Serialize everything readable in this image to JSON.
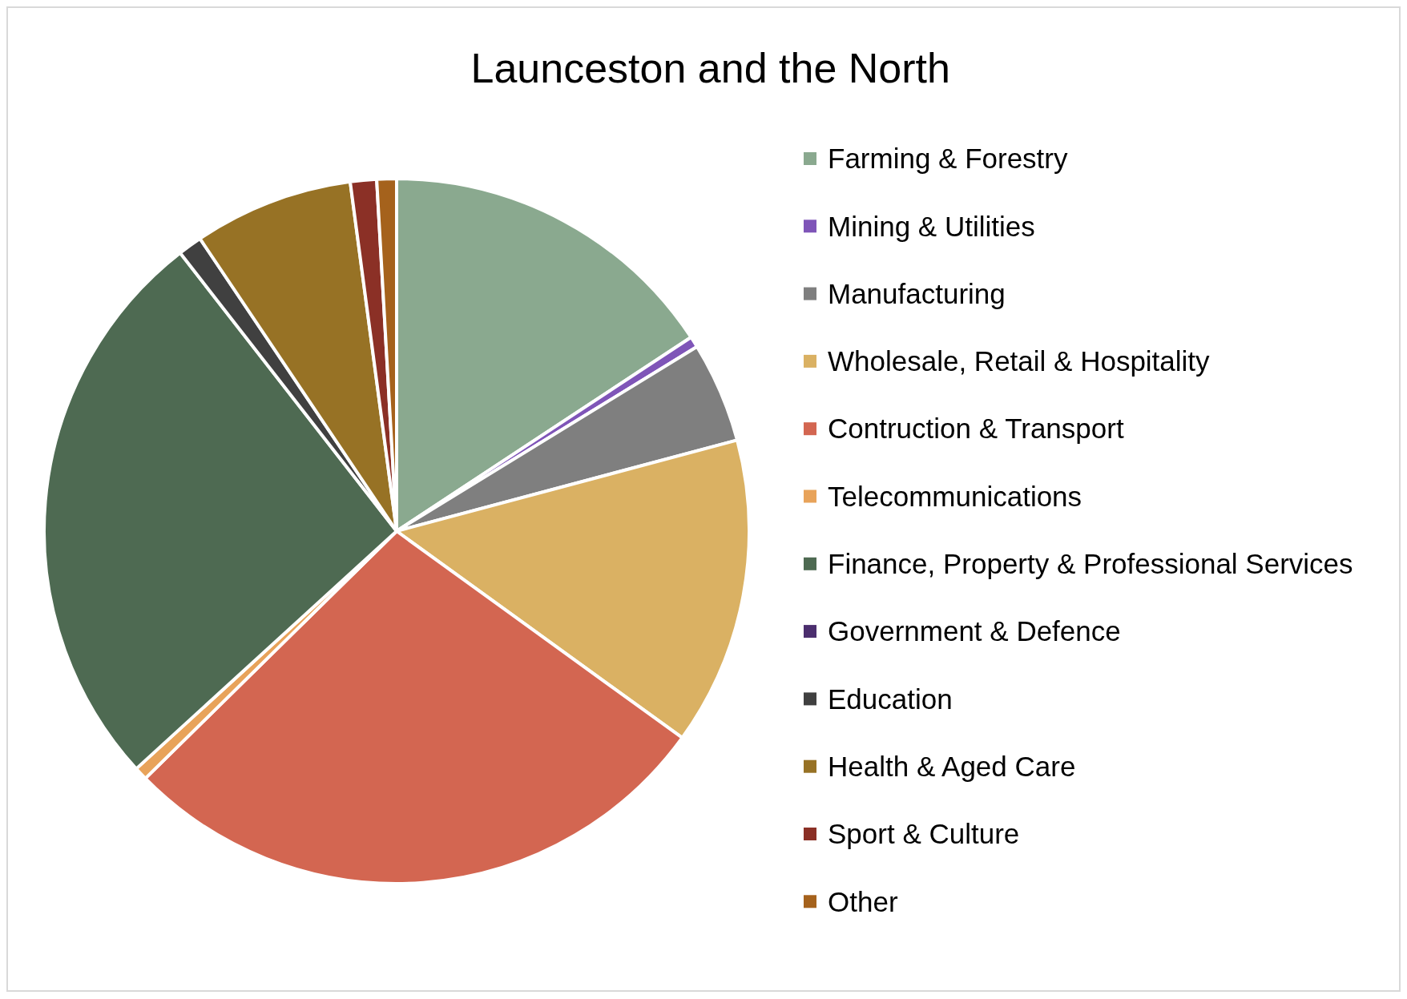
{
  "chart_data": {
    "type": "pie",
    "title": "Launceston and the North",
    "categories": [
      "Farming & Forestry",
      "Mining & Utilities",
      "Manufacturing",
      "Wholesale, Retail & Hospitality",
      "Contruction & Transport",
      "Telecommunications",
      "Finance, Property & Professional Services",
      "Government & Defence",
      "Education",
      "Health & Aged Care",
      "Sport & Culture",
      "Other"
    ],
    "values": [
      15.7,
      0.5,
      4.6,
      14.1,
      27.6,
      0.6,
      26.2,
      null,
      1.1,
      7.3,
      1.2,
      0.9
    ],
    "colors": [
      "#8aa98f",
      "#7f55b8",
      "#7f7f7f",
      "#dab163",
      "#d36651",
      "#e8a35a",
      "#4e6a52",
      "#4b2e6e",
      "#404040",
      "#977225",
      "#8b3026",
      "#a5621c"
    ],
    "legend": "right"
  }
}
